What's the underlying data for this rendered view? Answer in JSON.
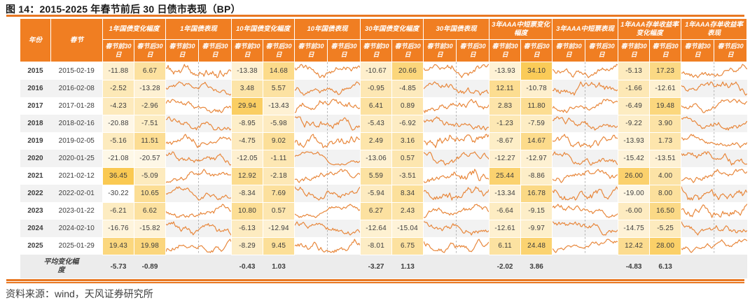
{
  "title": "图 14：2015-2025 年春节前后 30 日债市表现（BP）",
  "source": "资料来源：wind，天风证券研究所",
  "colors": {
    "header_bg": "#F07E22",
    "header_text": "#FFFFFF",
    "rule_orange": "#E87722",
    "stripe_gray": "#F2F2F2",
    "average_row_bg": "#ECECEC",
    "heat_low": "#FFFFFF",
    "heat_high": "#FAC952",
    "sparkline": "#E8873B",
    "dashed_divider": "#A0A0A0",
    "negative_text": "#4472C4",
    "positive_text": "#C55A11",
    "average_label": "#C9651A"
  },
  "heatmap": {
    "min": -30.22,
    "max": 36.45
  },
  "table": {
    "year_header": "年份",
    "festival_header": "春节",
    "sub_pre": "春节前30日",
    "sub_post": "春节后30日",
    "groups": [
      {
        "change_label": "1年国债变化幅度",
        "perf_label": "1年国债表现"
      },
      {
        "change_label": "10年国债变化幅度",
        "perf_label": "10年国债表现"
      },
      {
        "change_label": "30年国债变化幅度",
        "perf_label": "30年国债表现"
      },
      {
        "change_label": "3年AAA中短票变化幅度",
        "perf_label": "3年AAA中短票表现"
      },
      {
        "change_label": "1年AAA存单收益率变化幅度",
        "perf_label": "1年AAA存单收益率表现"
      }
    ],
    "rows": [
      {
        "year": "2015",
        "date": "2015-02-19",
        "pairs": [
          [
            -11.88,
            6.67
          ],
          [
            -13.38,
            14.68
          ],
          [
            -10.67,
            20.66
          ],
          [
            -13.93,
            34.1
          ],
          [
            -5.13,
            17.23
          ]
        ]
      },
      {
        "year": "2016",
        "date": "2016-02-08",
        "pairs": [
          [
            -2.52,
            -13.28
          ],
          [
            3.48,
            5.57
          ],
          [
            -0.95,
            -4.85
          ],
          [
            12.11,
            -10.78
          ],
          [
            -1.66,
            -12.61
          ]
        ]
      },
      {
        "year": "2017",
        "date": "2017-01-28",
        "pairs": [
          [
            -4.23,
            -2.96
          ],
          [
            29.94,
            -13.43
          ],
          [
            6.41,
            0.89
          ],
          [
            2.83,
            11.8
          ],
          [
            -6.49,
            19.48
          ]
        ]
      },
      {
        "year": "2018",
        "date": "2018-02-16",
        "pairs": [
          [
            -20.88,
            -7.51
          ],
          [
            -8.95,
            -5.98
          ],
          [
            -5.43,
            -6.92
          ],
          [
            -1.23,
            -7.59
          ],
          [
            -9.22,
            3.9
          ]
        ]
      },
      {
        "year": "2019",
        "date": "2019-02-05",
        "pairs": [
          [
            -5.16,
            11.51
          ],
          [
            -4.75,
            9.02
          ],
          [
            2.49,
            3.16
          ],
          [
            -8.67,
            14.67
          ],
          [
            -13.93,
            1.73
          ]
        ]
      },
      {
        "year": "2020",
        "date": "2020-01-25",
        "pairs": [
          [
            -21.08,
            -20.57
          ],
          [
            -12.05,
            -1.11
          ],
          [
            -13.06,
            0.57
          ],
          [
            -12.27,
            -12.97
          ],
          [
            -15.42,
            -13.51
          ]
        ]
      },
      {
        "year": "2021",
        "date": "2021-02-12",
        "pairs": [
          [
            36.45,
            -5.09
          ],
          [
            12.92,
            -2.18
          ],
          [
            5.59,
            -3.51
          ],
          [
            25.44,
            -8.86
          ],
          [
            26.0,
            4.0
          ]
        ]
      },
      {
        "year": "2022",
        "date": "2022-02-01",
        "pairs": [
          [
            -30.22,
            10.65
          ],
          [
            -8.34,
            7.69
          ],
          [
            -5.94,
            8.34
          ],
          [
            -13.34,
            16.78
          ],
          [
            -19.0,
            8.0
          ]
        ]
      },
      {
        "year": "2023",
        "date": "2023-01-22",
        "pairs": [
          [
            -6.21,
            6.62
          ],
          [
            10.8,
            0.57
          ],
          [
            6.27,
            2.43
          ],
          [
            -6.64,
            -9.15
          ],
          [
            -6.0,
            16.5
          ]
        ]
      },
      {
        "year": "2024",
        "date": "2024-02-10",
        "pairs": [
          [
            -16.76,
            -15.82
          ],
          [
            -6.13,
            -12.94
          ],
          [
            -12.64,
            -15.04
          ],
          [
            -12.61,
            -9.97
          ],
          [
            -14.75,
            -5.25
          ]
        ]
      },
      {
        "year": "2025",
        "date": "2025-01-29",
        "pairs": [
          [
            19.43,
            19.98
          ],
          [
            -8.29,
            9.45
          ],
          [
            -8.01,
            6.75
          ],
          [
            6.11,
            24.48
          ],
          [
            12.42,
            28.0
          ]
        ]
      }
    ],
    "average": {
      "label": "平均变化幅度",
      "pairs": [
        [
          -5.73,
          -0.89
        ],
        [
          -0.43,
          1.03
        ],
        [
          -3.27,
          1.13
        ],
        [
          -2.02,
          3.86
        ],
        [
          -4.83,
          6.13
        ]
      ]
    }
  }
}
